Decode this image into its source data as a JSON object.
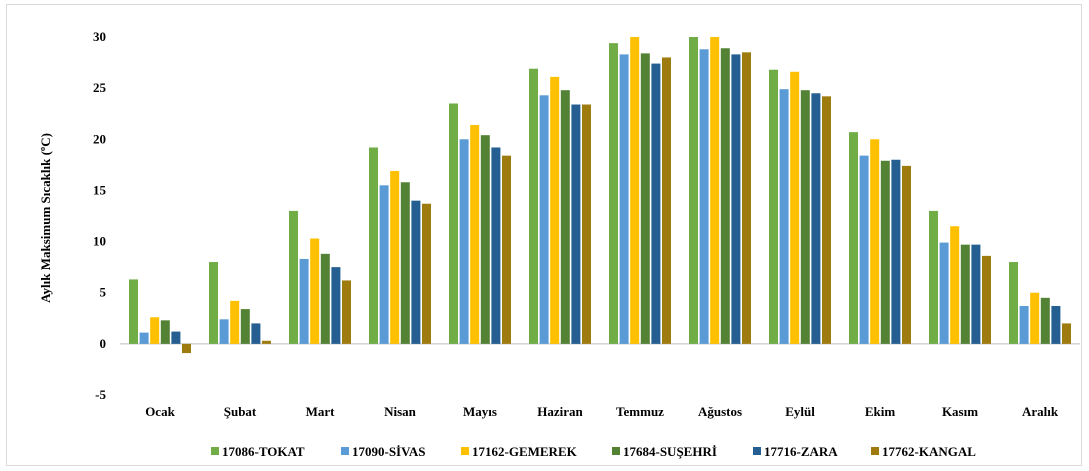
{
  "chart_data": {
    "type": "bar",
    "ylabel": "Aylık Maksimum Sıcaklık (ºC)",
    "xlabel": "",
    "ylim": [
      -5,
      30
    ],
    "yticks": [
      -5,
      0,
      5,
      10,
      15,
      20,
      25,
      30
    ],
    "grid": false,
    "legend_position": "bottom",
    "categories": [
      "Ocak",
      "Şubat",
      "Mart",
      "Nisan",
      "Mayıs",
      "Haziran",
      "Temmuz",
      "Ağustos",
      "Eylül",
      "Ekim",
      "Kasım",
      "Aralık"
    ],
    "series": [
      {
        "name": "17086-TOKAT",
        "color": "#70AD47",
        "values": [
          6.3,
          8.0,
          13.0,
          19.2,
          23.5,
          26.9,
          29.4,
          30.0,
          26.8,
          20.7,
          13.0,
          8.0
        ]
      },
      {
        "name": "17090-SİVAS",
        "color": "#5B9BD5",
        "values": [
          1.1,
          2.4,
          8.3,
          15.5,
          20.0,
          24.3,
          28.3,
          28.8,
          24.9,
          18.4,
          9.9,
          3.7
        ]
      },
      {
        "name": "17162-GEMEREK",
        "color": "#FFC000",
        "values": [
          2.6,
          4.2,
          10.3,
          16.9,
          21.4,
          26.1,
          30.0,
          30.0,
          26.6,
          20.0,
          11.5,
          5.0
        ]
      },
      {
        "name": "17684-SUŞEHRİ",
        "color": "#548235",
        "values": [
          2.3,
          3.4,
          8.8,
          15.8,
          20.4,
          24.8,
          28.4,
          28.9,
          24.8,
          17.9,
          9.7,
          4.5
        ]
      },
      {
        "name": "17716-ZARA",
        "color": "#255E91",
        "values": [
          1.2,
          2.0,
          7.5,
          14.0,
          19.2,
          23.4,
          27.4,
          28.3,
          24.5,
          18.0,
          9.7,
          3.7
        ]
      },
      {
        "name": "17762-KANGAL",
        "color": "#9E7B0F",
        "values": [
          -0.9,
          0.3,
          6.2,
          13.7,
          18.4,
          23.4,
          28.0,
          28.5,
          24.2,
          17.4,
          8.6,
          2.0
        ]
      }
    ]
  }
}
